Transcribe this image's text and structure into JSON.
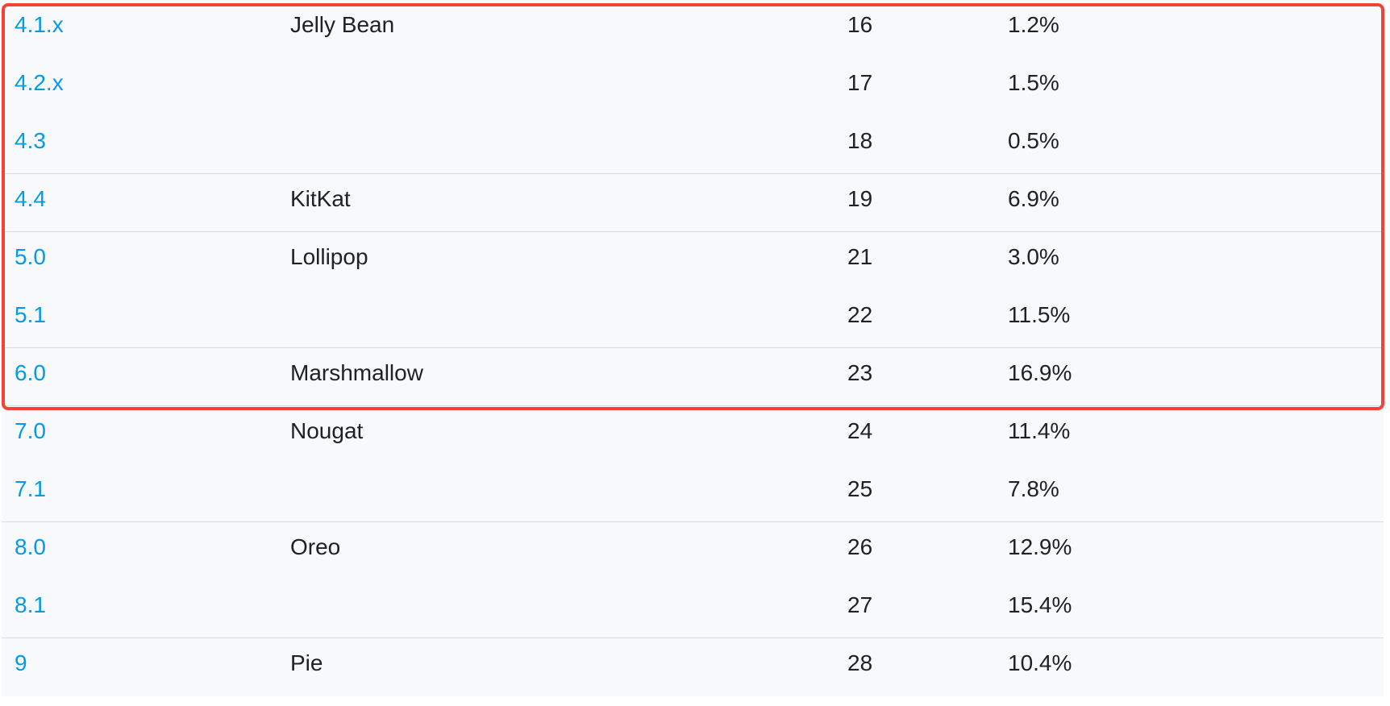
{
  "table": {
    "rows": [
      {
        "version": "4.1.x",
        "codename": "Jelly Bean",
        "api": "16",
        "distribution": "1.2%"
      },
      {
        "version": "4.2.x",
        "codename": "",
        "api": "17",
        "distribution": "1.5%"
      },
      {
        "version": "4.3",
        "codename": "",
        "api": "18",
        "distribution": "0.5%"
      },
      {
        "version": "4.4",
        "codename": "KitKat",
        "api": "19",
        "distribution": "6.9%"
      },
      {
        "version": "5.0",
        "codename": "Lollipop",
        "api": "21",
        "distribution": "3.0%"
      },
      {
        "version": "5.1",
        "codename": "",
        "api": "22",
        "distribution": "11.5%"
      },
      {
        "version": "6.0",
        "codename": "Marshmallow",
        "api": "23",
        "distribution": "16.9%"
      },
      {
        "version": "7.0",
        "codename": "Nougat",
        "api": "24",
        "distribution": "11.4%"
      },
      {
        "version": "7.1",
        "codename": "",
        "api": "25",
        "distribution": "7.8%"
      },
      {
        "version": "8.0",
        "codename": "Oreo",
        "api": "26",
        "distribution": "12.9%"
      },
      {
        "version": "8.1",
        "codename": "",
        "api": "27",
        "distribution": "15.4%"
      },
      {
        "version": "9",
        "codename": "Pie",
        "api": "28",
        "distribution": "10.4%"
      }
    ]
  },
  "colors": {
    "link": "#039be5",
    "text": "#202124",
    "row_bg": "#f8f9fa",
    "divider": "#dadce0",
    "highlight": "#f44336"
  }
}
